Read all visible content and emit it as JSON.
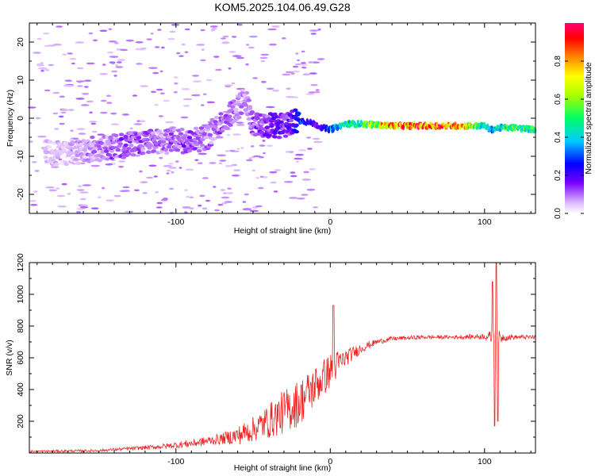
{
  "title": "KOM5.2025.104.06.49.G28",
  "chart_data": [
    {
      "type": "heatmap",
      "xlabel": "Height of straight line (km)",
      "ylabel": "Frequency (Hz)",
      "xlim": [
        -195,
        133
      ],
      "ylim": [
        -25,
        25
      ],
      "xticks": [
        -100,
        0,
        100
      ],
      "yticks": [
        -20,
        -10,
        0,
        10,
        20
      ],
      "colorbar": {
        "label": "Normalized spectral amplitude",
        "range": [
          0,
          1
        ],
        "ticks": [
          "0.0",
          "0.2",
          "0.4",
          "0.6",
          "0.8"
        ],
        "colormap": "rainbow-white-violet-to-red-magenta"
      },
      "ridge": {
        "x": [
          -170,
          -150,
          -130,
          -110,
          -90,
          -80,
          -70,
          -60,
          -55,
          -50,
          -45,
          -40,
          -35,
          -30,
          -25,
          -20,
          -15,
          -10,
          -5,
          0,
          10,
          20,
          40,
          60,
          80,
          100,
          104,
          110,
          120,
          133
        ],
        "freq": [
          -9,
          -8,
          -7,
          -6,
          -6,
          -5,
          -1,
          3,
          5,
          -2,
          -2,
          -2,
          -2,
          -2,
          -1,
          -0.5,
          -1,
          -1.5,
          -2.5,
          -3,
          -1.5,
          -1.5,
          -2,
          -2,
          -2,
          -2,
          -3,
          -2.5,
          -2.5,
          -3
        ],
        "amplitude": [
          0.08,
          0.12,
          0.15,
          0.12,
          0.15,
          0.12,
          0.15,
          0.12,
          0.12,
          0.15,
          0.15,
          0.18,
          0.2,
          0.2,
          0.22,
          0.3,
          0.25,
          0.18,
          0.2,
          0.35,
          0.45,
          0.5,
          0.85,
          0.9,
          0.88,
          0.45,
          0.35,
          0.45,
          0.55,
          0.5
        ]
      }
    },
    {
      "type": "line",
      "xlabel": "Height of straight line (km)",
      "ylabel": "SNR (v/v)",
      "xlim": [
        -195,
        133
      ],
      "ylim": [
        0,
        1200
      ],
      "xticks": [
        -100,
        0,
        100
      ],
      "yticks": [
        200,
        400,
        600,
        800,
        1000,
        1200
      ],
      "color": "#ee2222",
      "envelope": {
        "x": [
          -195,
          -150,
          -110,
          -90,
          -70,
          -60,
          -50,
          -40,
          -30,
          -20,
          -10,
          0,
          5,
          10,
          20,
          30,
          40,
          60,
          80,
          100,
          104,
          108,
          112,
          120,
          133
        ],
        "base": [
          10,
          15,
          40,
          60,
          90,
          110,
          150,
          200,
          260,
          320,
          420,
          520,
          560,
          600,
          660,
          700,
          720,
          730,
          730,
          735,
          730,
          720,
          730,
          730,
          730
        ],
        "noise": [
          6,
          8,
          15,
          25,
          35,
          60,
          80,
          110,
          140,
          150,
          130,
          110,
          90,
          55,
          30,
          18,
          14,
          12,
          12,
          18,
          40,
          60,
          25,
          14,
          14
        ]
      },
      "peaks": [
        {
          "x": 2,
          "y": 930
        },
        {
          "x": 105,
          "y": 1080
        },
        {
          "x": 106.5,
          "y": 170
        },
        {
          "x": 107.5,
          "y": 1200
        },
        {
          "x": 108.5,
          "y": 200
        }
      ]
    }
  ]
}
